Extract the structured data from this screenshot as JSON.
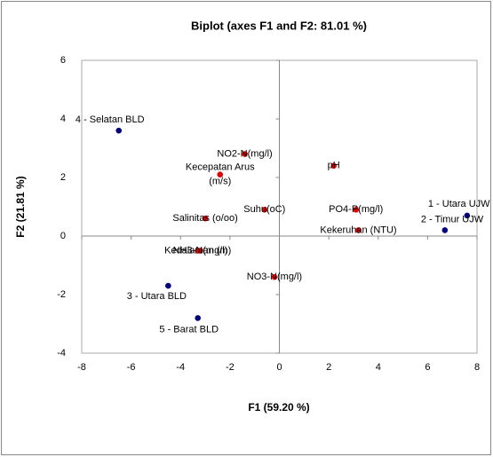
{
  "chart_data": {
    "type": "scatter",
    "title": "Biplot (axes F1 and F2: 81.01 %)",
    "x_label": "F1 (59.20 %)",
    "y_label": "F2 (21.81 %)",
    "xlim": [
      -8,
      8
    ],
    "xticks": [
      -8,
      -6,
      -4,
      -2,
      0,
      2,
      4,
      6,
      8
    ],
    "ylim": [
      -4,
      6
    ],
    "yticks": [
      -4,
      -2,
      0,
      2,
      4,
      6
    ],
    "series": [
      {
        "color": "#00007a",
        "labels": [
          "1 - Utara UJW",
          "2 - Timur UJW",
          "3 - Utara BLD",
          "4 - Selatan BLD",
          "5 - Barat BLD"
        ],
        "x": [
          7.6,
          6.7,
          -4.5,
          -6.5,
          -3.3
        ],
        "values": [
          0.7,
          0.2,
          -1.7,
          3.6,
          -2.8
        ]
      },
      {
        "color": "#e00000",
        "labels": [
          "NO2-N(mg/l)",
          "Kecepatan Arus (m/s)",
          "pH",
          "Suhu(oC)",
          "PO4-P(mg/l)",
          "Salinitas (o/oo)",
          "Kekeruhan (NTU)",
          "NH3-N(mg/l)",
          "Kedalaman (m)",
          "NO3-N(mg/l)"
        ],
        "x": [
          -1.4,
          -2.4,
          2.2,
          -0.6,
          3.1,
          -3.0,
          3.2,
          -3.2,
          -3.3,
          -0.2
        ],
        "values": [
          2.8,
          2.1,
          2.4,
          0.9,
          0.9,
          0.6,
          0.2,
          -0.5,
          -0.5,
          -1.4
        ]
      }
    ]
  }
}
